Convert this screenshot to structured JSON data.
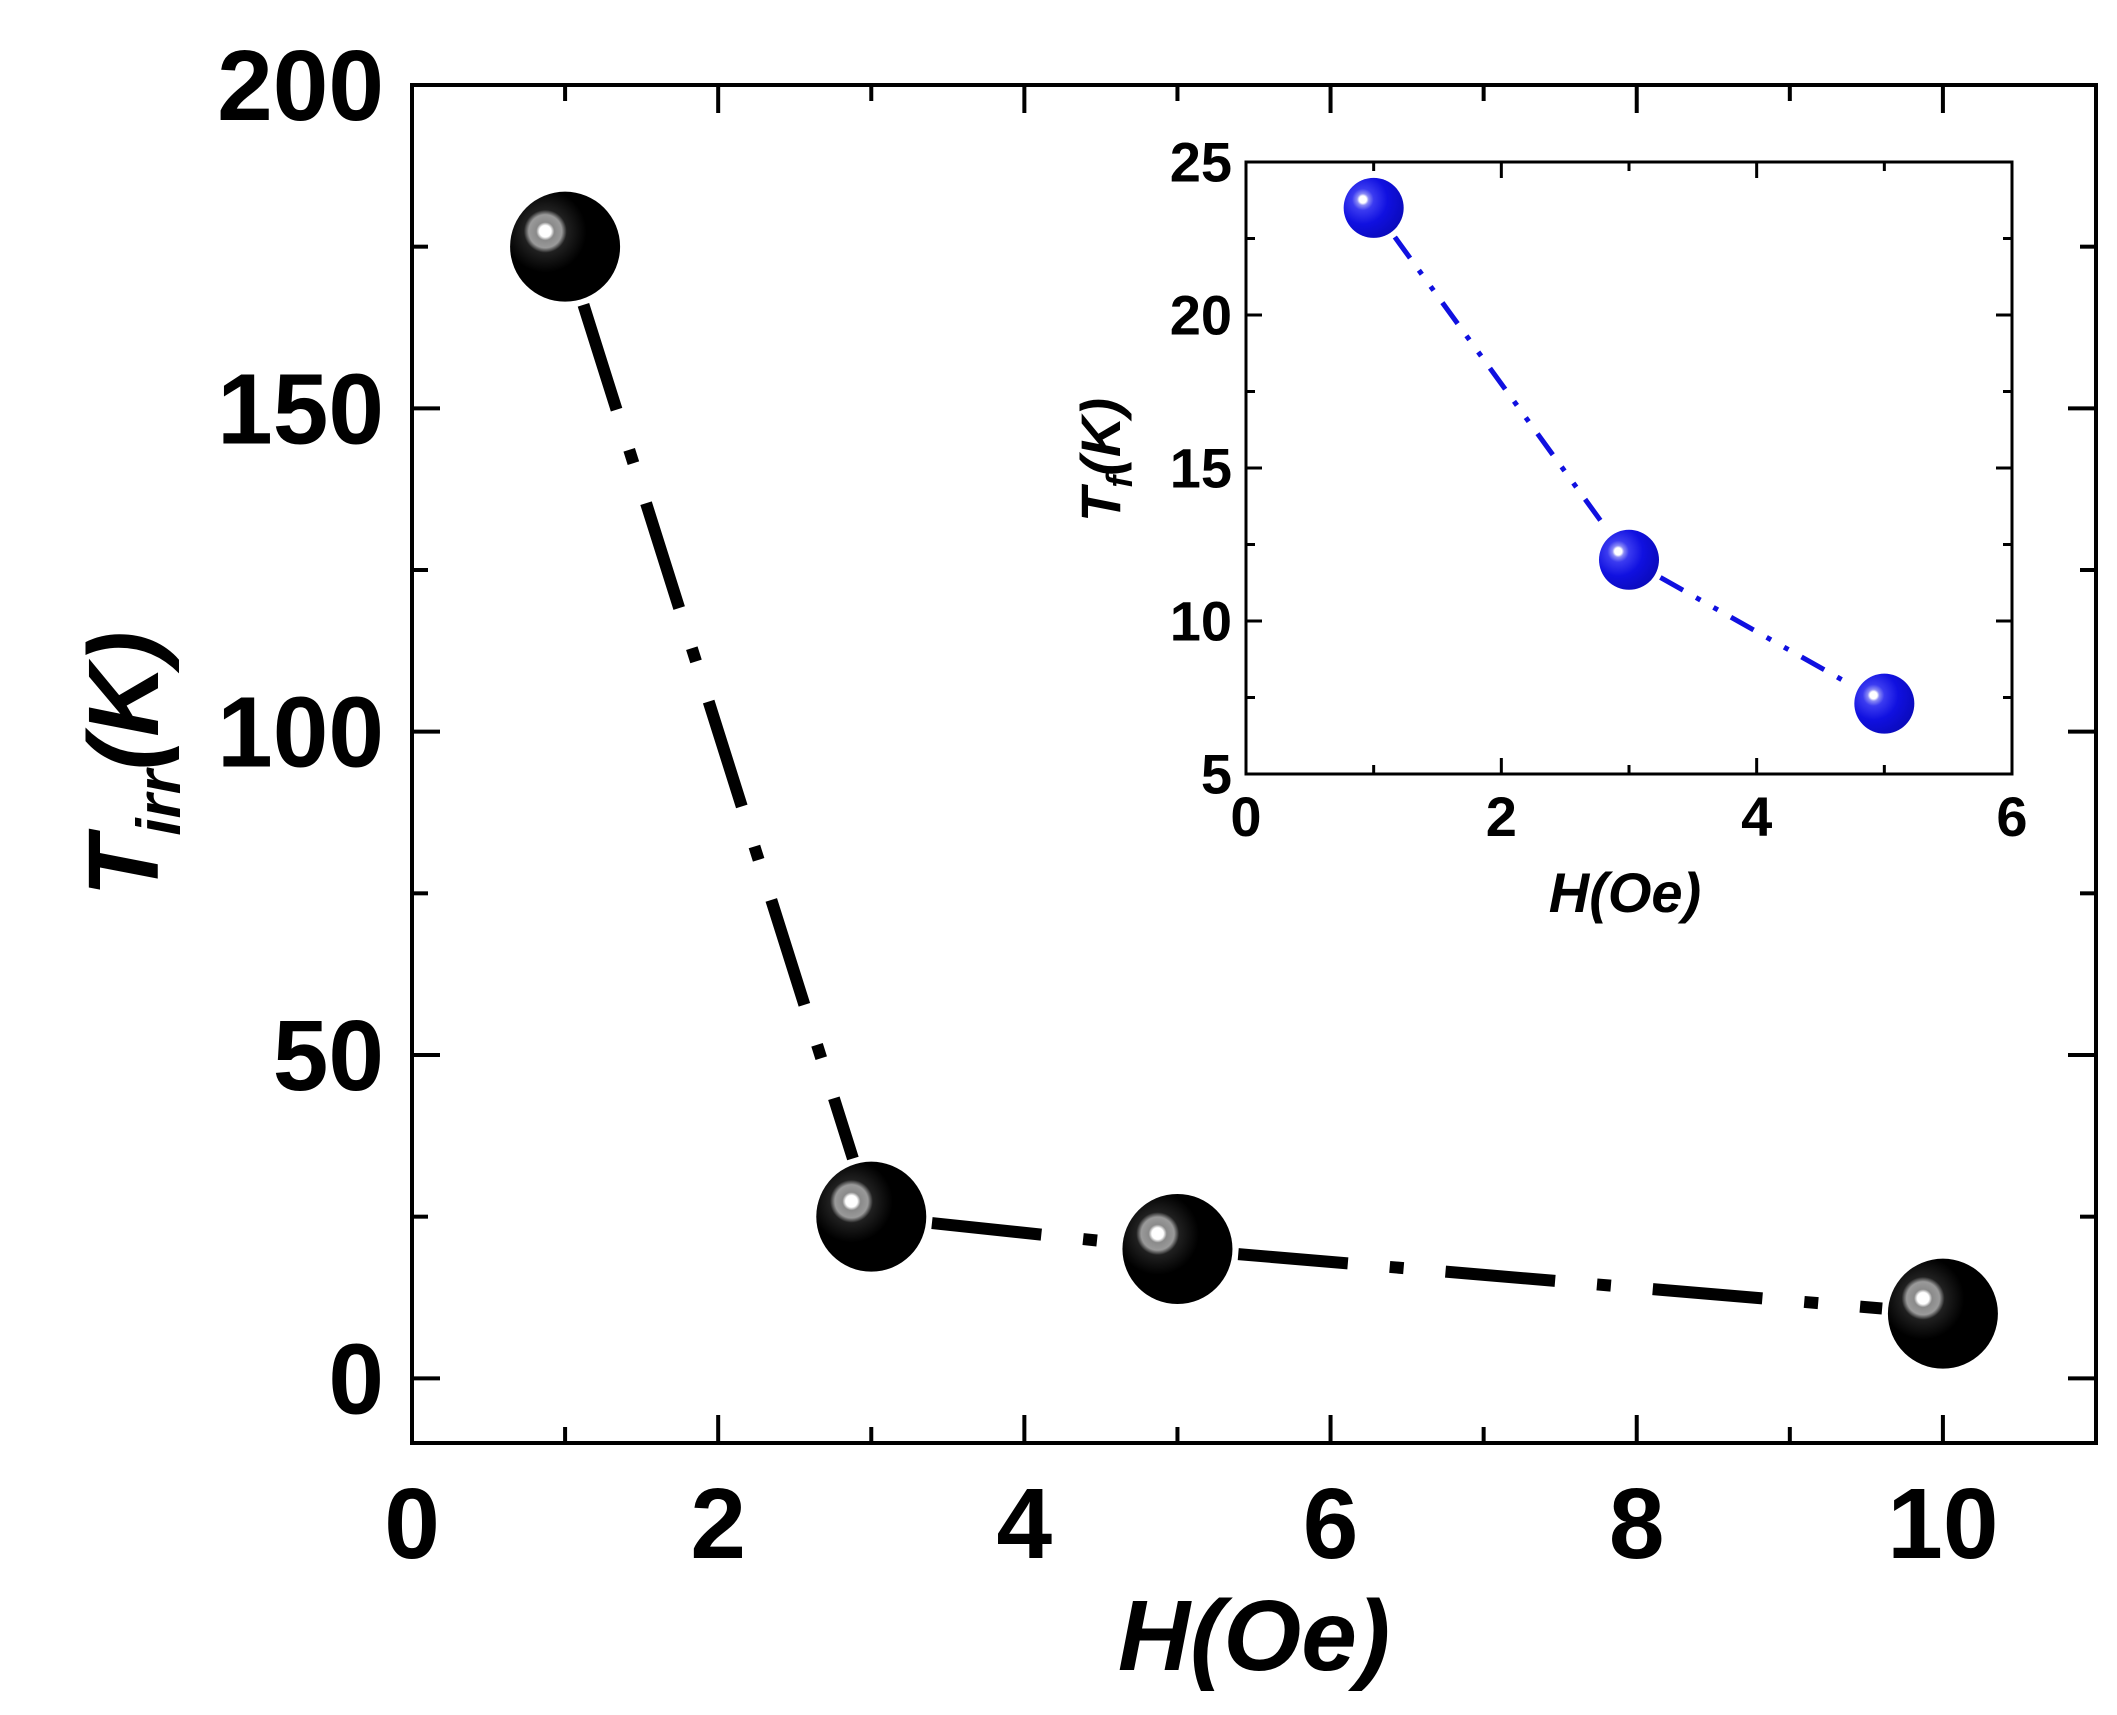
{
  "chart_data": [
    {
      "id": "main",
      "type": "scatter",
      "xlabel_main": "H(Oe)",
      "ylabel_main": "T",
      "ylabel_sub": "irr",
      "ylabel_tail": "(K)",
      "xlim": [
        0,
        11
      ],
      "ylim": [
        -10,
        200
      ],
      "xticks": [
        0,
        2,
        4,
        6,
        8,
        10
      ],
      "yticks": [
        0,
        50,
        100,
        150,
        200
      ],
      "xticks_minor": [
        1,
        3,
        5,
        7,
        9,
        11
      ],
      "yticks_minor": [
        25,
        75,
        125,
        175
      ],
      "grid": false,
      "series": [
        {
          "x": [
            1,
            3,
            5,
            10
          ],
          "y": [
            175,
            25,
            20,
            10
          ],
          "color": "#000000",
          "line_style": "dash-dot"
        }
      ]
    },
    {
      "id": "inset",
      "type": "scatter",
      "xlabel_main": "H(Oe)",
      "ylabel_main": "T",
      "ylabel_sub": "f",
      "ylabel_tail": "(K)",
      "xlim": [
        0,
        6
      ],
      "ylim": [
        5,
        25
      ],
      "xticks": [
        0,
        2,
        4,
        6
      ],
      "yticks": [
        5,
        10,
        15,
        20,
        25
      ],
      "xticks_minor": [
        1,
        3,
        5
      ],
      "yticks_minor": [
        7.5,
        12.5,
        17.5,
        22.5
      ],
      "grid": false,
      "series": [
        {
          "x": [
            1,
            3,
            5
          ],
          "y": [
            23.5,
            12,
            7.3
          ],
          "color": "#1010e0",
          "line_style": "dash-dot-dot"
        }
      ]
    }
  ]
}
